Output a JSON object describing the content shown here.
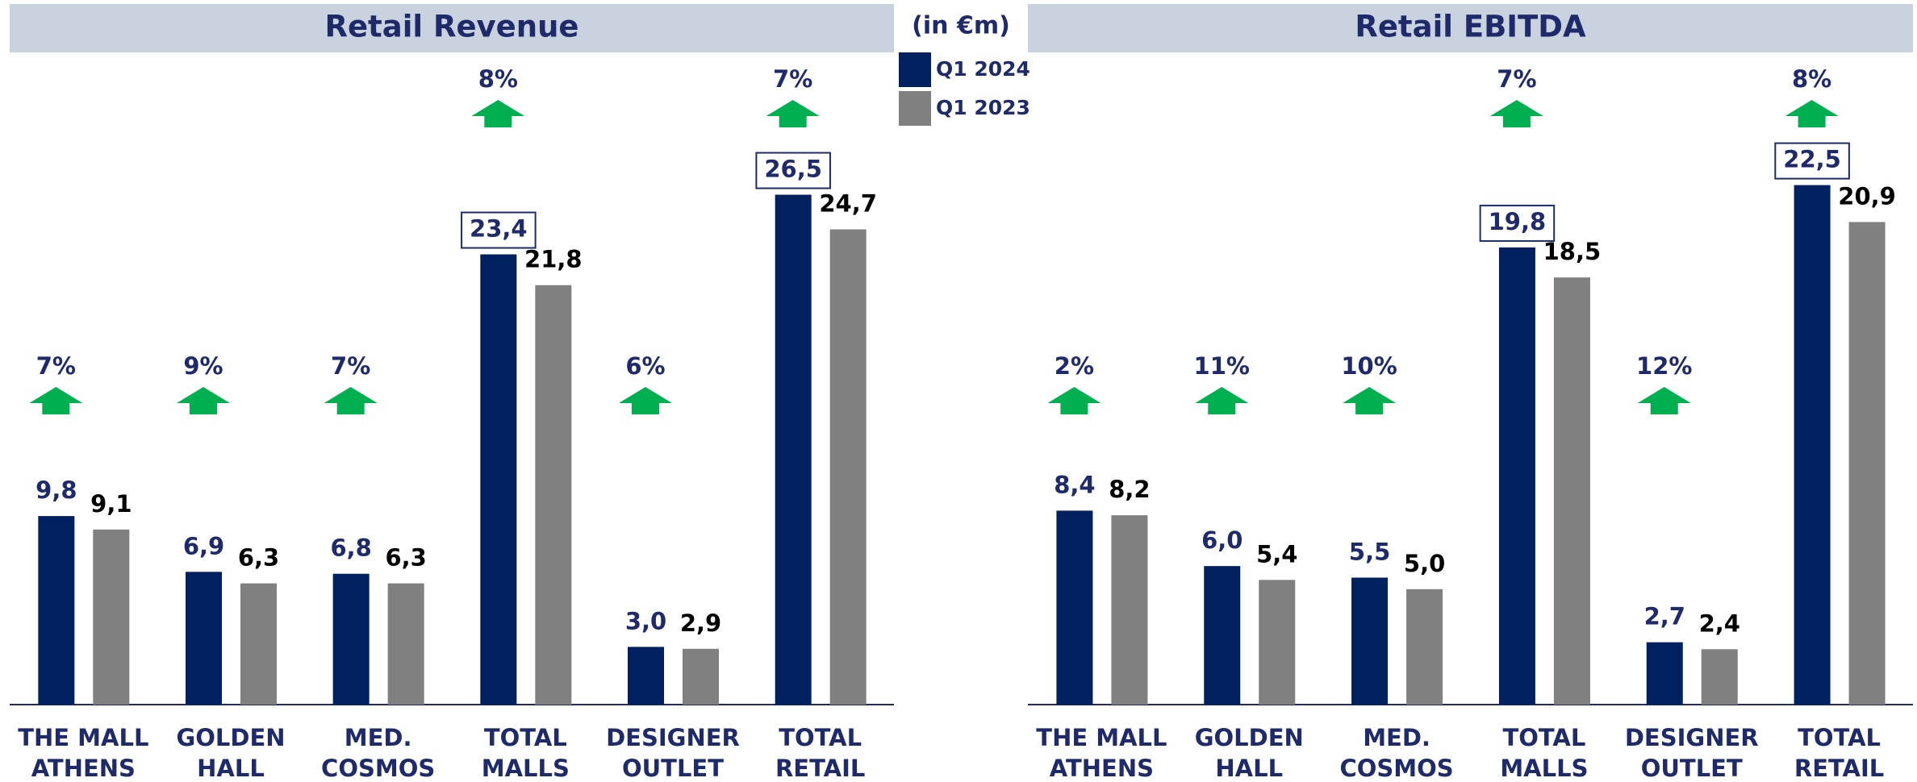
{
  "chart_data": [
    {
      "type": "bar",
      "title": "Retail Revenue",
      "y_label": "(in €m)",
      "categories": [
        "THE MALL\nATHENS",
        "GOLDEN\nHALL",
        "MED.\nCOSMOS",
        "TOTAL\nMALLS",
        "DESIGNER\nOUTLET",
        "TOTAL\nRETAIL"
      ],
      "series": [
        {
          "name": "Q1 2024",
          "color": "#002060",
          "values": [
            9.8,
            6.9,
            6.8,
            23.4,
            3.0,
            26.5
          ],
          "value_labels": [
            "9,8",
            "6,9",
            "6,8",
            "23,4",
            "3,0",
            "26,5"
          ]
        },
        {
          "name": "Q1 2023",
          "color": "#808080",
          "values": [
            9.1,
            6.3,
            6.3,
            21.8,
            2.9,
            24.7
          ],
          "value_labels": [
            "9,1",
            "6,3",
            "6,3",
            "21,8",
            "2,9",
            "24,7"
          ]
        }
      ],
      "growth": [
        7,
        9,
        7,
        8,
        6,
        7
      ],
      "growth_labels": [
        "7%",
        "9%",
        "7%",
        "8%",
        "6%",
        "7%"
      ],
      "ylim": [
        0,
        30
      ]
    },
    {
      "type": "bar",
      "title": "Retail EBITDA",
      "categories": [
        "THE MALL\nATHENS",
        "GOLDEN\nHALL",
        "MED.\nCOSMOS",
        "TOTAL\nMALLS",
        "DESIGNER\nOUTLET",
        "TOTAL\nRETAIL"
      ],
      "series": [
        {
          "name": "Q1 2024",
          "color": "#002060",
          "values": [
            8.4,
            6.0,
            5.5,
            19.8,
            2.7,
            22.5
          ],
          "value_labels": [
            "8,4",
            "6,0",
            "5,5",
            "19,8",
            "2,7",
            "22,5"
          ]
        },
        {
          "name": "Q1 2023",
          "color": "#808080",
          "values": [
            8.2,
            5.4,
            5.0,
            18.5,
            2.4,
            20.9
          ],
          "value_labels": [
            "8,2",
            "5,4",
            "5,0",
            "18,5",
            "2,4",
            "20,9"
          ]
        }
      ],
      "growth": [
        2,
        11,
        10,
        7,
        12,
        8
      ],
      "growth_labels": [
        "2%",
        "11%",
        "10%",
        "7%",
        "12%",
        "8%"
      ],
      "ylim": [
        0,
        25
      ]
    }
  ]
}
